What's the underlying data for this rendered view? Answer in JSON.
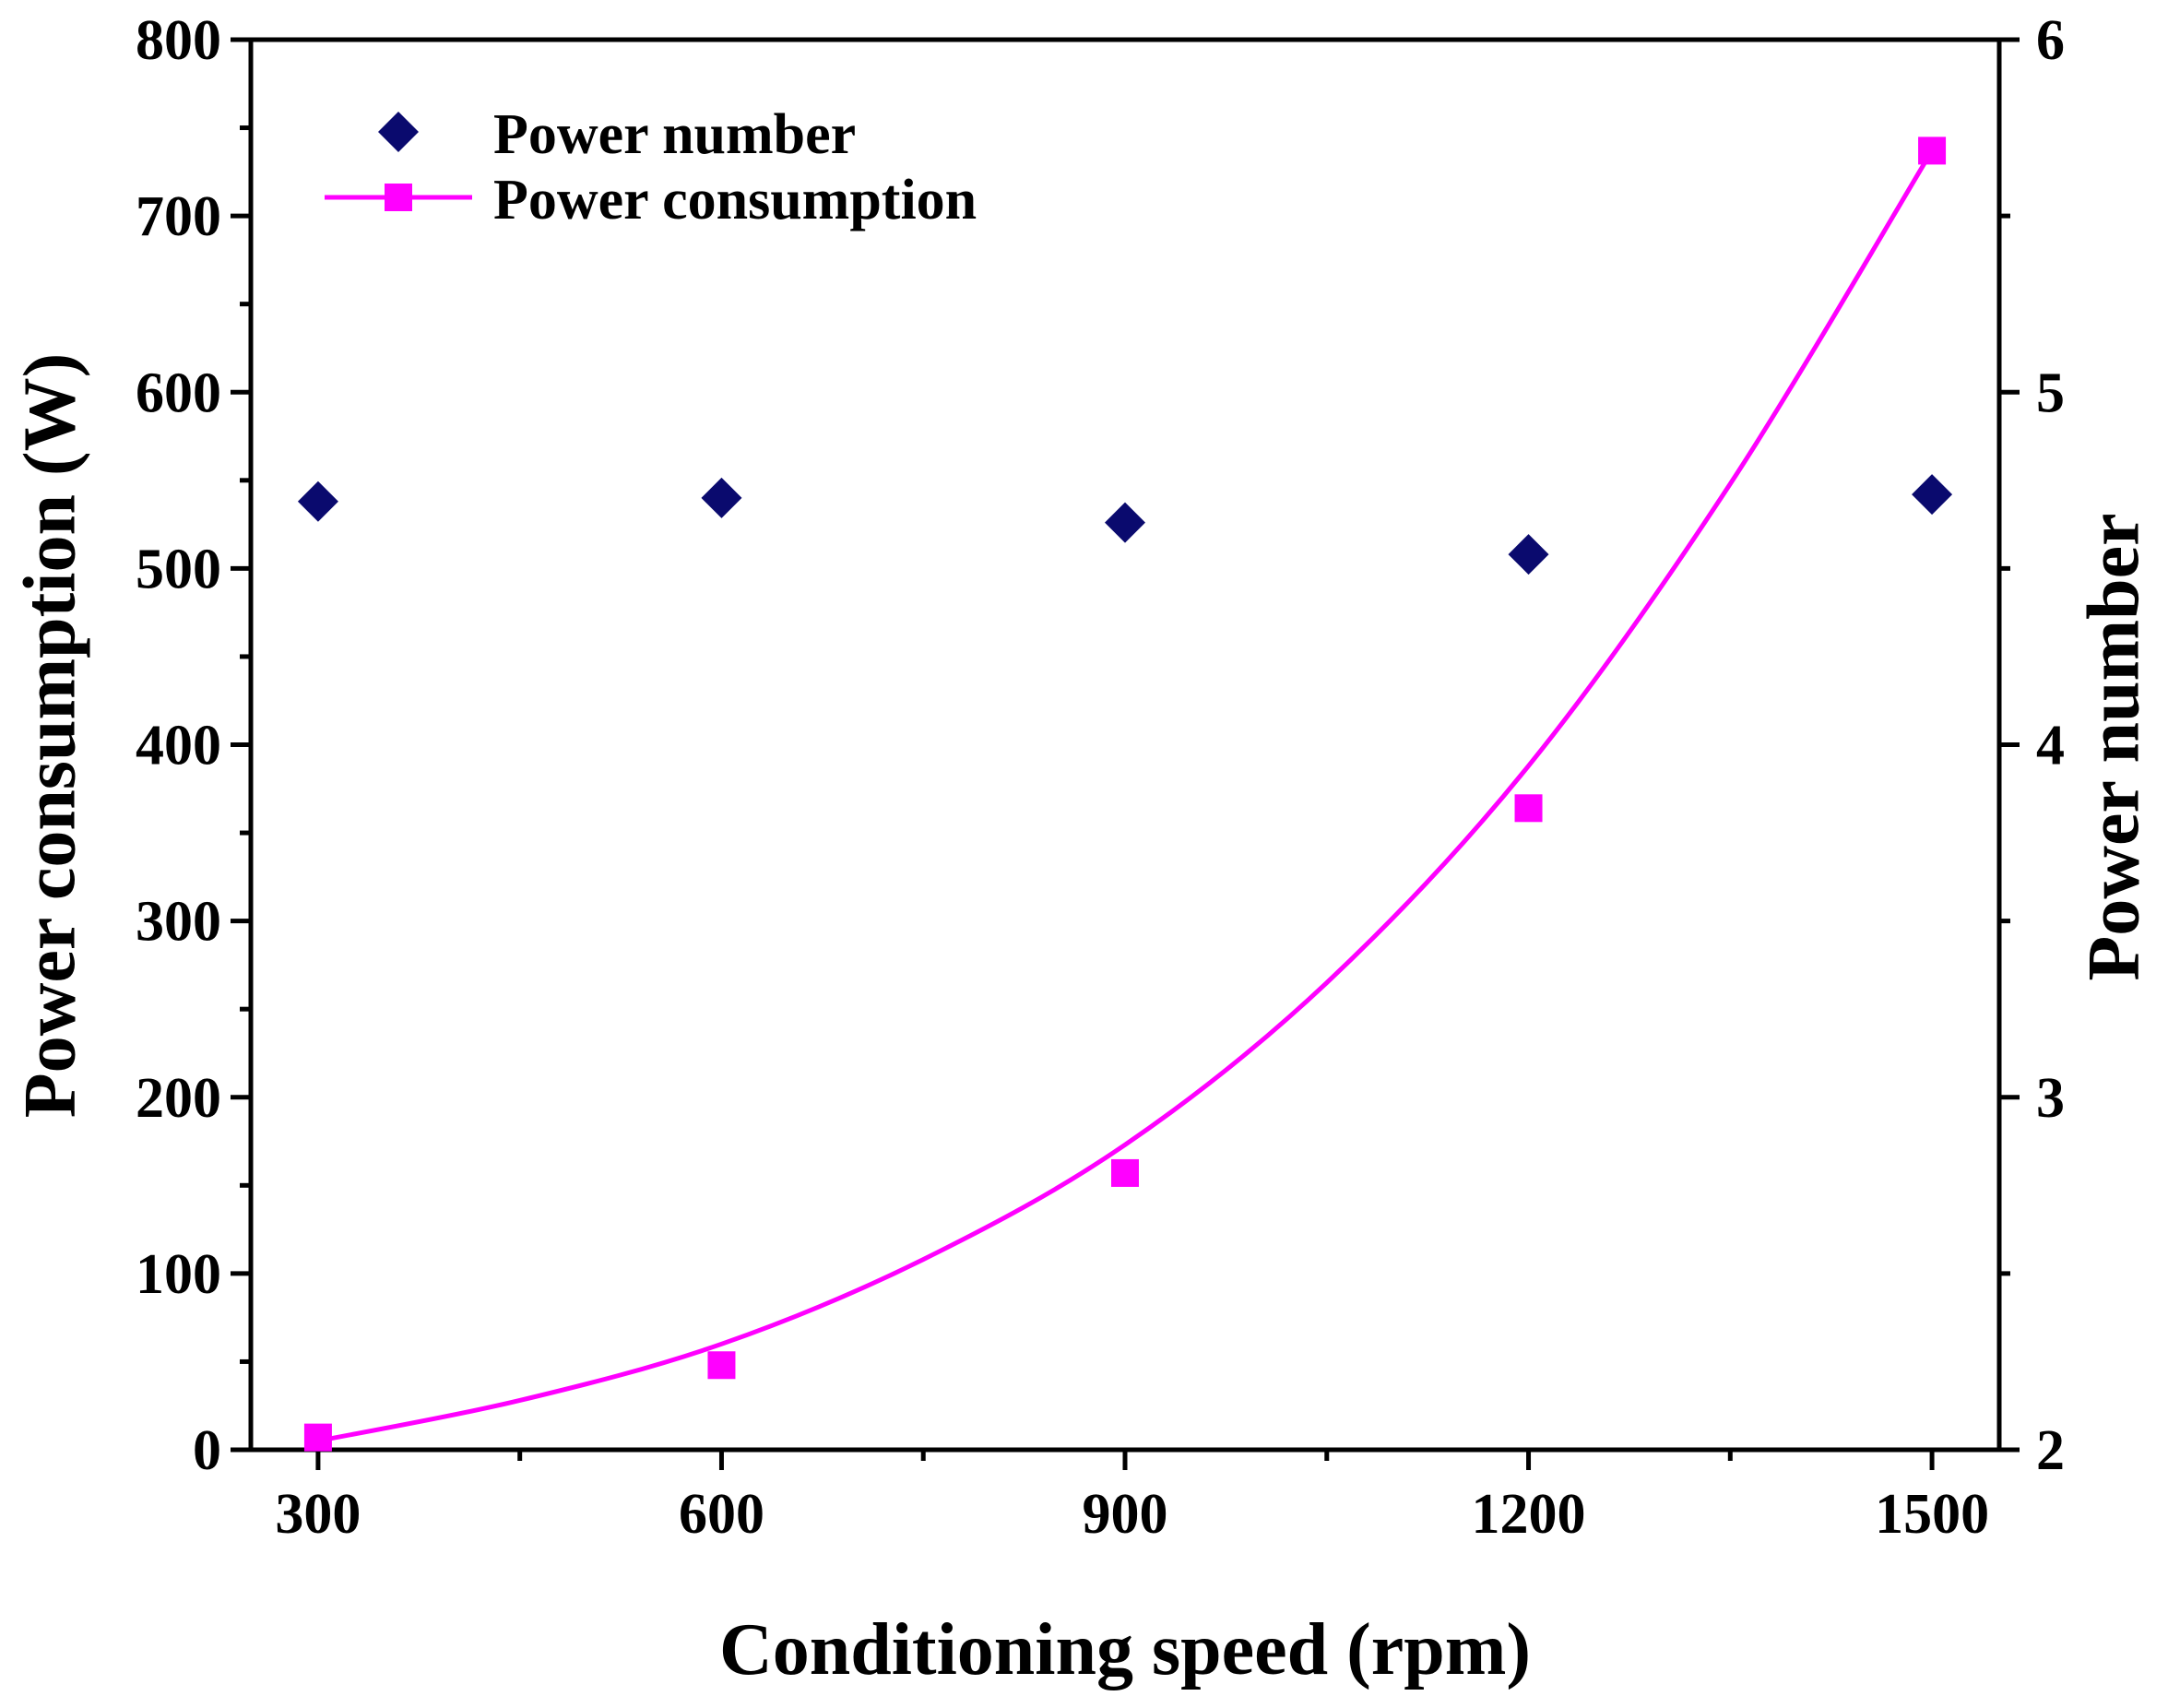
{
  "chart_data": {
    "type": "scatter",
    "title": "",
    "xlabel": "Conditioning speed (rpm)",
    "ylabel_left": "Power consumption (W)",
    "ylabel_right": "Power number",
    "xlim": [
      250,
      1550
    ],
    "ylim_left": [
      0,
      800
    ],
    "ylim_right": [
      2,
      6
    ],
    "x_ticks": [
      300,
      600,
      900,
      1200,
      1500
    ],
    "x_tick_labels": [
      "300",
      "600",
      "900",
      "1200",
      "1500"
    ],
    "y_left_ticks": [
      0,
      100,
      200,
      300,
      400,
      500,
      600,
      700,
      800
    ],
    "y_left_tick_labels": [
      "0",
      "100",
      "200",
      "300",
      "400",
      "500",
      "600",
      "700",
      "800"
    ],
    "y_right_ticks": [
      2,
      3,
      4,
      5,
      6
    ],
    "y_right_tick_labels": [
      "2",
      "3",
      "4",
      "5",
      "6"
    ],
    "legend_position": "top-left",
    "series": [
      {
        "name": "Power number",
        "axis": "right",
        "marker": "diamond",
        "color": "#0a0a6e",
        "x": [
          300,
          600,
          900,
          1200,
          1500
        ],
        "y": [
          4.69,
          4.7,
          4.63,
          4.54,
          4.71
        ]
      },
      {
        "name": "Power consumption",
        "axis": "left",
        "marker": "square",
        "color": "#ff00ff",
        "x": [
          300,
          600,
          900,
          1200,
          1500
        ],
        "y": [
          7,
          48,
          157,
          364,
          737
        ]
      }
    ],
    "fit_curve": {
      "series": "Power consumption",
      "color": "#ff00ff",
      "x": [
        300,
        450,
        600,
        750,
        900,
        1050,
        1200,
        1350,
        1500
      ],
      "y": [
        5,
        28,
        60,
        108,
        173,
        265,
        388,
        548,
        737
      ]
    }
  }
}
